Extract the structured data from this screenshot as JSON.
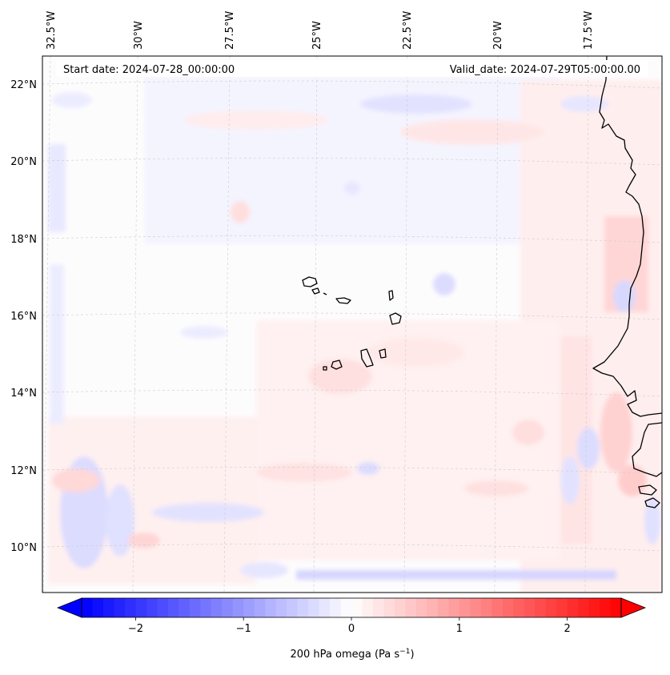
{
  "map": {
    "header_left": "Start date: 2024-07-28_00:00:00",
    "header_right": "Valid_date: 2024-07-29T05:00:00.00",
    "lon_labels": [
      "32.5°W",
      "30°W",
      "27.5°W",
      "25°W",
      "22.5°W",
      "20°W",
      "17.5°W"
    ],
    "lat_labels": [
      "22°N",
      "20°N",
      "18°N",
      "16°N",
      "14°N",
      "12°N",
      "10°N"
    ],
    "extent": {
      "lon_min": -32.8,
      "lon_max": -16.0,
      "lat_min": 8.9,
      "lat_max": 22.8
    }
  },
  "colorbar": {
    "label_prefix": "200 hPa omega (Pa s",
    "label_exp": "−1",
    "label_suffix": ")",
    "ticks": [
      "−2",
      "−1",
      "0",
      "1",
      "2"
    ],
    "tick_values": [
      -2,
      -1,
      0,
      1,
      2
    ],
    "vmin": -2.5,
    "vmax": 2.5,
    "levels": 50,
    "cmap": "bwr",
    "color_low": "#0000ff",
    "color_mid": "#ffffff",
    "color_high": "#ff0000"
  }
}
